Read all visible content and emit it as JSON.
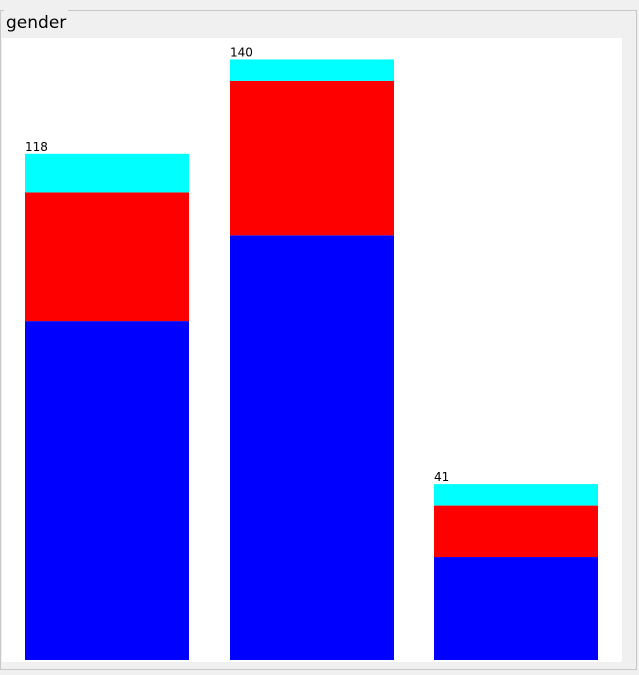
{
  "chart_data": {
    "type": "stacked-bar",
    "title": "gender",
    "categories": [
      null,
      null,
      null
    ],
    "series": [
      {
        "color": "#0000ff",
        "values": [
          79,
          99,
          24
        ]
      },
      {
        "color": "#ff0000",
        "values": [
          30,
          36,
          12
        ]
      },
      {
        "color": "#00ffff",
        "values": [
          9,
          5,
          5
        ]
      }
    ],
    "totals": [
      118,
      140,
      41
    ],
    "ylim": [
      0,
      145
    ]
  }
}
